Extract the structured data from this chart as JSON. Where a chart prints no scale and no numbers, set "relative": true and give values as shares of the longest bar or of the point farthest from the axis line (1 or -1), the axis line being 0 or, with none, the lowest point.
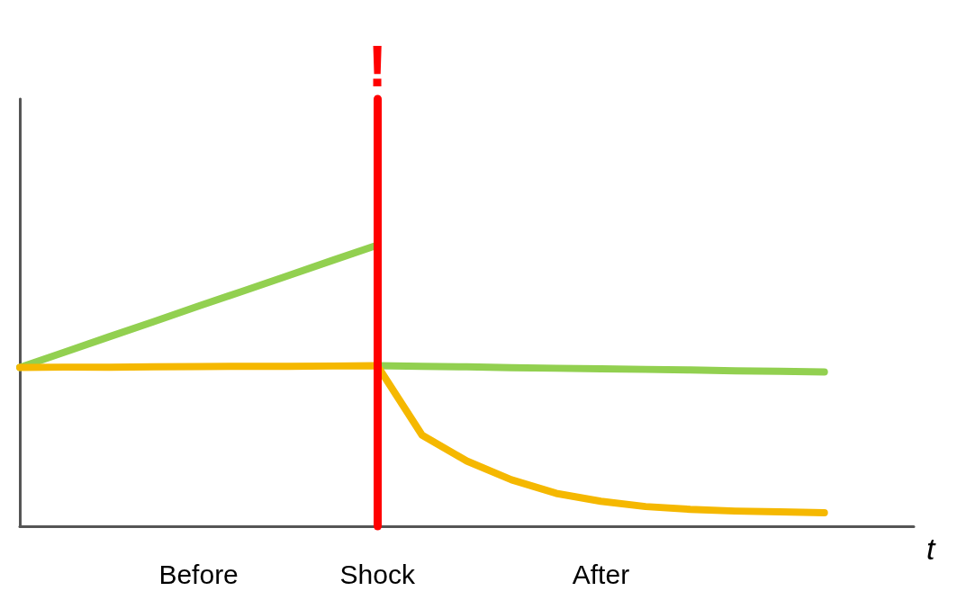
{
  "chart_data": {
    "type": "line",
    "relative": true,
    "xlabel": "t",
    "categories": [
      null,
      null,
      null,
      null,
      "Before",
      null,
      null,
      null,
      "Shock",
      null,
      null,
      null,
      null,
      "After",
      null,
      null,
      null,
      null,
      null,
      null,
      null
    ],
    "tick_labels": "x",
    "marker": "none",
    "line_style": "solid",
    "series": [
      {
        "color": "#92d050",
        "values": [
          0.565,
          0.619,
          0.674,
          0.728,
          0.783,
          0.837,
          0.891,
          0.946,
          1,
          null,
          null,
          null,
          null,
          null,
          null,
          null,
          null,
          null,
          null,
          null,
          null
        ]
      },
      {
        "color": "#92d050",
        "values": [
          null,
          null,
          null,
          null,
          null,
          null,
          null,
          null,
          0.571,
          0.569,
          0.567,
          0.564,
          0.562,
          0.56,
          0.558,
          0.556,
          0.553,
          0.551,
          0.549,
          null,
          null
        ]
      },
      {
        "color": "#f5b800",
        "values": [
          0.565,
          0.566,
          0.566,
          0.567,
          0.568,
          0.569,
          0.569,
          0.57,
          0.571,
          0.324,
          0.232,
          0.165,
          0.117,
          0.089,
          0.07,
          0.06,
          0.054,
          0.051,
          0.048,
          null,
          null
        ]
      }
    ],
    "ref_lines": [
      {
        "axis": "x",
        "value": "Shock",
        "label": "!",
        "color": "#ff0000"
      }
    ]
  }
}
